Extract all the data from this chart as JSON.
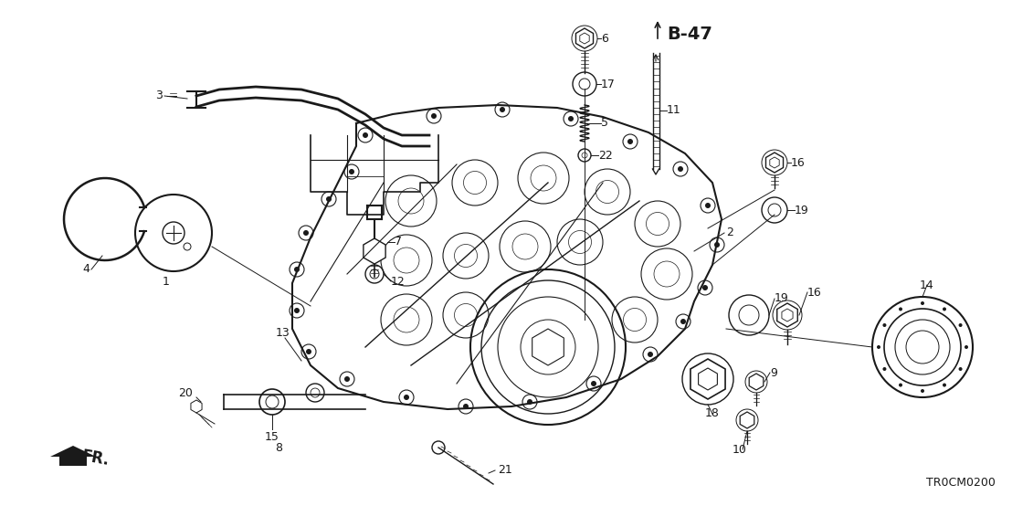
{
  "background_color": "#ffffff",
  "fig_width": 11.08,
  "fig_height": 5.54,
  "dpi": 100,
  "diagram_label": "B-47",
  "part_code": "TR0CM0200",
  "direction_label": "FR.",
  "color": "#1a1a1a"
}
